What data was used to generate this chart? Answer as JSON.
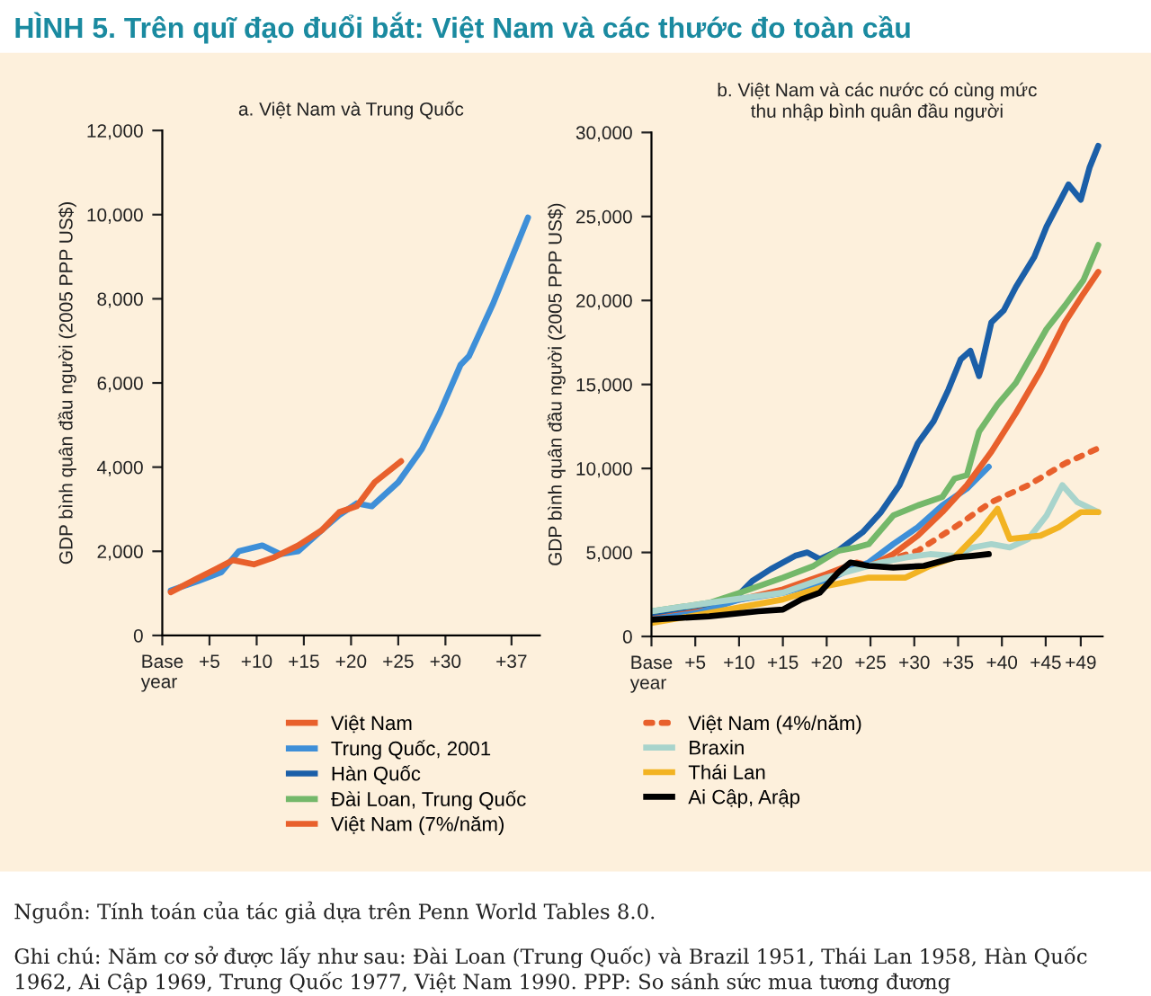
{
  "chart_data": [
    {
      "type": "line",
      "title": "a. Việt Nam và Trung Quốc",
      "ylabel": "GDP bình quân đầu người (2005 PPP US$)",
      "annotations": [
        "HÌNH 5. Trên quĩ đạo đuổi bắt: Việt Nam và các thước đo toàn cầu",
        "Nguồn: Tính toán của tác giả dựa trên Penn World Tables 8.0.",
        "Ghi chú: Năm cơ sở được lấy như sau: Đài Loan (Trung Quốc) và Brazil 1951, Thái Lan 1958, Hàn Quốc 1962, Ai Cập 1969, Trung Quốc 1977, Việt Nam 1990. PPP: So sánh sức mua tương đương"
      ],
      "xlim": [
        0,
        40
      ],
      "ylim": [
        0,
        12000
      ],
      "xticks": [
        {
          "value": 0,
          "label": "Base\nyear"
        },
        {
          "value": 5,
          "label": "+5"
        },
        {
          "value": 10,
          "label": "+10"
        },
        {
          "value": 15,
          "label": "+15"
        },
        {
          "value": 20,
          "label": "+20"
        },
        {
          "value": 25,
          "label": "+25"
        },
        {
          "value": 30,
          "label": "+30"
        },
        {
          "value": 37,
          "label": "+37"
        }
      ],
      "yticks": [
        0,
        {
          "value": 2000,
          "label": "2,000"
        },
        {
          "value": 4000,
          "label": "4,000"
        },
        {
          "value": 6000,
          "label": "6,000"
        },
        {
          "value": 8000,
          "label": "8,000"
        },
        {
          "value": 10000,
          "label": "10,000"
        },
        {
          "value": 12000,
          "label": "12,000"
        }
      ],
      "grid": false,
      "marker": "none",
      "line_style": "solid",
      "series": [
        {
          "color": "#3e8fd8",
          "x": [
            0.9,
            3.75,
            6.25,
            8.1,
            10.6,
            12.5,
            14.4,
            16.9,
            18.75,
            20.6,
            22.2,
            25,
            27.5,
            29.4,
            31.6,
            32.5,
            35,
            38.75
          ],
          "values": [
            1070,
            1290,
            1500,
            2000,
            2140,
            1930,
            2000,
            2500,
            2860,
            3140,
            3070,
            3640,
            4430,
            5290,
            6430,
            6640,
            7860,
            9930
          ]
        },
        {
          "color": "#e8602c",
          "x": [
            0.9,
            3.75,
            5.6,
            7.5,
            9.7,
            11.9,
            14.4,
            16.9,
            18.75,
            20.6,
            22.5,
            25.3
          ],
          "values": [
            1030,
            1360,
            1570,
            1790,
            1690,
            1860,
            2140,
            2500,
            2930,
            3070,
            3640,
            4140
          ]
        }
      ]
    },
    {
      "type": "line",
      "title": "b. Việt Nam và các nước có cùng mức\nthu nhập bình quân đầu người",
      "ylabel": "GDP bình quân đầu người (2005 PPP US$)",
      "xlim": [
        0,
        51.5
      ],
      "ylim": [
        0,
        30000
      ],
      "xticks": [
        {
          "value": 0,
          "label": "Base\nyear"
        },
        {
          "value": 5,
          "label": "+5"
        },
        {
          "value": 10,
          "label": "+10"
        },
        {
          "value": 15,
          "label": "+15"
        },
        {
          "value": 20,
          "label": "+20"
        },
        {
          "value": 25,
          "label": "+25"
        },
        {
          "value": 30,
          "label": "+30"
        },
        {
          "value": 35,
          "label": "+35"
        },
        {
          "value": 40,
          "label": "+40"
        },
        {
          "value": 45,
          "label": "+45"
        },
        {
          "value": 49,
          "label": "+49"
        }
      ],
      "yticks": [
        0,
        {
          "value": 5000,
          "label": "5,000"
        },
        {
          "value": 10000,
          "label": "10,000"
        },
        {
          "value": 15000,
          "label": "15,000"
        },
        {
          "value": 20000,
          "label": "20,000"
        },
        {
          "value": 25000,
          "label": "25,000"
        },
        {
          "value": 30000,
          "label": "30,000"
        }
      ],
      "grid": false,
      "marker": "none",
      "legend": "bottom",
      "series": [
        {
          "name": "Việt Nam",
          "color": "#e8602c",
          "line_style": "solid",
          "x": [
            0,
            5.2,
            10.1,
            15,
            19.9,
            23.4,
            25
          ],
          "values": [
            1100,
            1700,
            2200,
            2800,
            3700,
            4400,
            4200
          ]
        },
        {
          "name": "Trung Quốc, 2001",
          "color": "#3e8fd8",
          "line_style": "solid",
          "x": [
            0,
            5.2,
            10.1,
            15,
            19.9,
            22.7,
            24.8,
            27.6,
            30.4,
            33.2,
            36,
            38.5
          ],
          "values": [
            1000,
            1400,
            2200,
            2600,
            3300,
            4000,
            4400,
            5500,
            6500,
            7800,
            8800,
            10100
          ]
        },
        {
          "name": "Hàn Quốc",
          "color": "#1b5fa8",
          "line_style": "solid",
          "x": [
            0,
            6,
            9.8,
            11.5,
            13.6,
            16.4,
            17.8,
            19.2,
            21.3,
            24.1,
            26.2,
            28.3,
            30.4,
            32.2,
            33.9,
            35.3,
            36.4,
            37.4,
            38.8,
            40.2,
            41.6,
            43.7,
            45.1,
            47.6,
            49,
            50,
            51
          ],
          "values": [
            1400,
            1900,
            2400,
            3300,
            4000,
            4800,
            5000,
            4600,
            5100,
            6200,
            7400,
            9000,
            11500,
            12800,
            14700,
            16500,
            17000,
            15500,
            18700,
            19400,
            20800,
            22600,
            24400,
            26900,
            26000,
            27900,
            29200
          ]
        },
        {
          "name": "Đài Loan, Trung Quốc",
          "color": "#74b86a",
          "line_style": "solid",
          "x": [
            0,
            6.6,
            10.1,
            15,
            18.5,
            21.3,
            23.4,
            24.8,
            27.6,
            30.4,
            33.2,
            34.6,
            36,
            37.4,
            39.5,
            41.6,
            45.1,
            47.2,
            49.3,
            51
          ],
          "values": [
            1500,
            2000,
            2600,
            3500,
            4200,
            5100,
            5300,
            5500,
            7200,
            7800,
            8300,
            9400,
            9600,
            12200,
            13800,
            15100,
            18300,
            19700,
            21200,
            23300
          ]
        },
        {
          "name": "Việt Nam (7%/năm)",
          "color": "#e8602c",
          "line_style": "solid",
          "x": [
            25,
            27.6,
            30.4,
            33.2,
            36,
            38.8,
            41.6,
            44.4,
            47.2,
            49.3,
            51
          ],
          "values": [
            4200,
            4900,
            6000,
            7400,
            9000,
            11000,
            13300,
            15800,
            18700,
            20400,
            21700
          ]
        },
        {
          "name": "Việt Nam (4%/năm)",
          "color": "#e8602c",
          "line_style": "dotted",
          "x": [
            25,
            30.4,
            34.6,
            38.8,
            43,
            47.2,
            51
          ],
          "values": [
            4200,
            5100,
            6500,
            8000,
            9000,
            10300,
            11200
          ]
        },
        {
          "name": "Braxin",
          "color": "#a8d4cc",
          "line_style": "solid",
          "x": [
            0,
            6.6,
            15,
            19.9,
            23.4,
            26.2,
            29,
            31.8,
            34.6,
            36.7,
            38.8,
            40.9,
            43,
            45.1,
            46.9,
            48.6,
            51
          ],
          "values": [
            1500,
            2000,
            2600,
            3500,
            4000,
            4400,
            4700,
            4900,
            4800,
            5300,
            5500,
            5300,
            5800,
            7200,
            9000,
            8000,
            7400
          ]
        },
        {
          "name": "Thái Lan",
          "color": "#f2b322",
          "line_style": "solid",
          "x": [
            0,
            6.6,
            15,
            19.9,
            24.8,
            29,
            31.8,
            34.6,
            37.4,
            39.5,
            40.9,
            44.4,
            46.5,
            49,
            51
          ],
          "values": [
            800,
            1400,
            2200,
            3000,
            3500,
            3500,
            4200,
            4700,
            6200,
            7600,
            5800,
            6000,
            6500,
            7400,
            7400
          ]
        },
        {
          "name": "Ai Cập, Arập",
          "color": "#000000",
          "line_style": "solid",
          "x": [
            0,
            6.6,
            12.2,
            15,
            17.1,
            19.2,
            21.3,
            22.7,
            24.8,
            27.6,
            31.1,
            34.6,
            36.7,
            38.5
          ],
          "values": [
            1000,
            1200,
            1500,
            1600,
            2200,
            2600,
            3800,
            4400,
            4200,
            4100,
            4200,
            4700,
            4800,
            4900
          ]
        }
      ]
    }
  ]
}
